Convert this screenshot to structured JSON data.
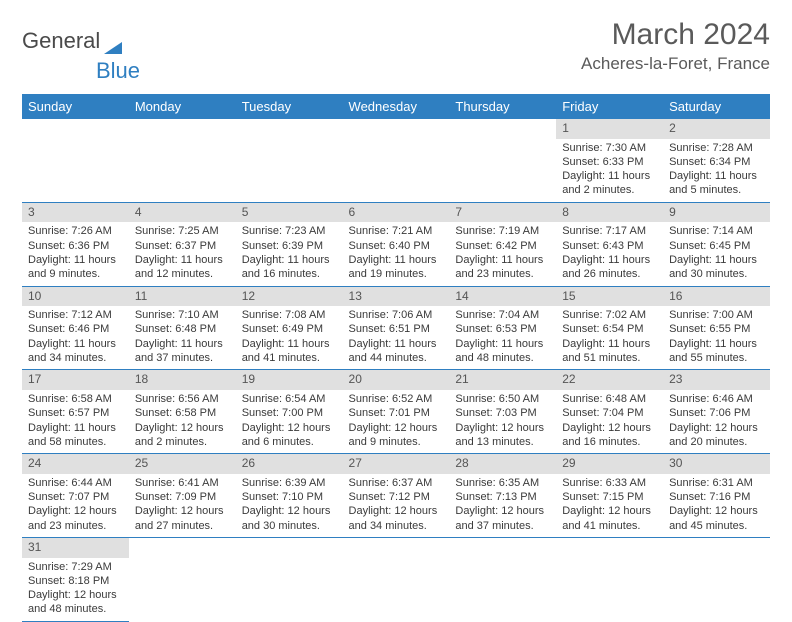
{
  "logo": {
    "text_a": "General",
    "text_b": "Blue"
  },
  "title": "March 2024",
  "location": "Acheres-la-Foret, France",
  "colors": {
    "header_bg": "#2f7fc1",
    "header_text": "#ffffff",
    "daynum_bg": "#e0e0e0",
    "row_border": "#2f7fc1",
    "body_text": "#3a3a3a",
    "title_text": "#5a5a5a"
  },
  "day_headers": [
    "Sunday",
    "Monday",
    "Tuesday",
    "Wednesday",
    "Thursday",
    "Friday",
    "Saturday"
  ],
  "weeks": [
    [
      null,
      null,
      null,
      null,
      null,
      {
        "n": "1",
        "sr": "7:30 AM",
        "ss": "6:33 PM",
        "dl": "11 hours and 2 minutes."
      },
      {
        "n": "2",
        "sr": "7:28 AM",
        "ss": "6:34 PM",
        "dl": "11 hours and 5 minutes."
      }
    ],
    [
      {
        "n": "3",
        "sr": "7:26 AM",
        "ss": "6:36 PM",
        "dl": "11 hours and 9 minutes."
      },
      {
        "n": "4",
        "sr": "7:25 AM",
        "ss": "6:37 PM",
        "dl": "11 hours and 12 minutes."
      },
      {
        "n": "5",
        "sr": "7:23 AM",
        "ss": "6:39 PM",
        "dl": "11 hours and 16 minutes."
      },
      {
        "n": "6",
        "sr": "7:21 AM",
        "ss": "6:40 PM",
        "dl": "11 hours and 19 minutes."
      },
      {
        "n": "7",
        "sr": "7:19 AM",
        "ss": "6:42 PM",
        "dl": "11 hours and 23 minutes."
      },
      {
        "n": "8",
        "sr": "7:17 AM",
        "ss": "6:43 PM",
        "dl": "11 hours and 26 minutes."
      },
      {
        "n": "9",
        "sr": "7:14 AM",
        "ss": "6:45 PM",
        "dl": "11 hours and 30 minutes."
      }
    ],
    [
      {
        "n": "10",
        "sr": "7:12 AM",
        "ss": "6:46 PM",
        "dl": "11 hours and 34 minutes."
      },
      {
        "n": "11",
        "sr": "7:10 AM",
        "ss": "6:48 PM",
        "dl": "11 hours and 37 minutes."
      },
      {
        "n": "12",
        "sr": "7:08 AM",
        "ss": "6:49 PM",
        "dl": "11 hours and 41 minutes."
      },
      {
        "n": "13",
        "sr": "7:06 AM",
        "ss": "6:51 PM",
        "dl": "11 hours and 44 minutes."
      },
      {
        "n": "14",
        "sr": "7:04 AM",
        "ss": "6:53 PM",
        "dl": "11 hours and 48 minutes."
      },
      {
        "n": "15",
        "sr": "7:02 AM",
        "ss": "6:54 PM",
        "dl": "11 hours and 51 minutes."
      },
      {
        "n": "16",
        "sr": "7:00 AM",
        "ss": "6:55 PM",
        "dl": "11 hours and 55 minutes."
      }
    ],
    [
      {
        "n": "17",
        "sr": "6:58 AM",
        "ss": "6:57 PM",
        "dl": "11 hours and 58 minutes."
      },
      {
        "n": "18",
        "sr": "6:56 AM",
        "ss": "6:58 PM",
        "dl": "12 hours and 2 minutes."
      },
      {
        "n": "19",
        "sr": "6:54 AM",
        "ss": "7:00 PM",
        "dl": "12 hours and 6 minutes."
      },
      {
        "n": "20",
        "sr": "6:52 AM",
        "ss": "7:01 PM",
        "dl": "12 hours and 9 minutes."
      },
      {
        "n": "21",
        "sr": "6:50 AM",
        "ss": "7:03 PM",
        "dl": "12 hours and 13 minutes."
      },
      {
        "n": "22",
        "sr": "6:48 AM",
        "ss": "7:04 PM",
        "dl": "12 hours and 16 minutes."
      },
      {
        "n": "23",
        "sr": "6:46 AM",
        "ss": "7:06 PM",
        "dl": "12 hours and 20 minutes."
      }
    ],
    [
      {
        "n": "24",
        "sr": "6:44 AM",
        "ss": "7:07 PM",
        "dl": "12 hours and 23 minutes."
      },
      {
        "n": "25",
        "sr": "6:41 AM",
        "ss": "7:09 PM",
        "dl": "12 hours and 27 minutes."
      },
      {
        "n": "26",
        "sr": "6:39 AM",
        "ss": "7:10 PM",
        "dl": "12 hours and 30 minutes."
      },
      {
        "n": "27",
        "sr": "6:37 AM",
        "ss": "7:12 PM",
        "dl": "12 hours and 34 minutes."
      },
      {
        "n": "28",
        "sr": "6:35 AM",
        "ss": "7:13 PM",
        "dl": "12 hours and 37 minutes."
      },
      {
        "n": "29",
        "sr": "6:33 AM",
        "ss": "7:15 PM",
        "dl": "12 hours and 41 minutes."
      },
      {
        "n": "30",
        "sr": "6:31 AM",
        "ss": "7:16 PM",
        "dl": "12 hours and 45 minutes."
      }
    ],
    [
      {
        "n": "31",
        "sr": "7:29 AM",
        "ss": "8:18 PM",
        "dl": "12 hours and 48 minutes."
      },
      null,
      null,
      null,
      null,
      null,
      null
    ]
  ],
  "labels": {
    "sunrise": "Sunrise:",
    "sunset": "Sunset:",
    "daylight": "Daylight:"
  }
}
